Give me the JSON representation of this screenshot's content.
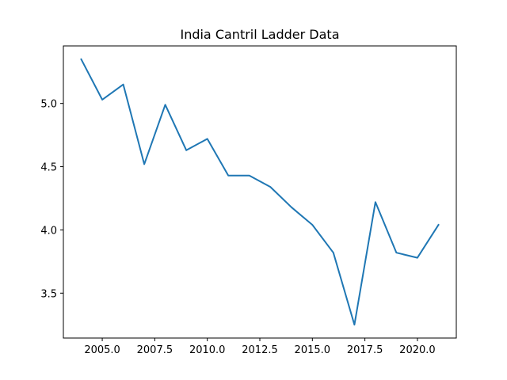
{
  "chart_data": {
    "type": "line",
    "title": "India Cantril Ladder Data",
    "xlabel": "",
    "ylabel": "",
    "xlim": [
      2003.15,
      2021.85
    ],
    "ylim": [
      3.145,
      5.455
    ],
    "xticks": [
      2005.0,
      2007.5,
      2010.0,
      2012.5,
      2015.0,
      2017.5,
      2020.0
    ],
    "xtick_labels": [
      "2005.0",
      "2007.5",
      "2010.0",
      "2012.5",
      "2015.0",
      "2017.5",
      "2020.0"
    ],
    "yticks": [
      3.5,
      4.0,
      4.5,
      5.0
    ],
    "ytick_labels": [
      "3.5",
      "4.0",
      "4.5",
      "5.0"
    ],
    "grid": false,
    "series": [
      {
        "color": "#1f77b4",
        "x": [
          2004,
          2005,
          2006,
          2007,
          2008,
          2009,
          2010,
          2011,
          2012,
          2013,
          2014,
          2015,
          2016,
          2017,
          2018,
          2019,
          2020,
          2021
        ],
        "y": [
          5.35,
          5.03,
          5.15,
          4.52,
          4.99,
          4.63,
          4.72,
          4.43,
          4.43,
          4.34,
          4.18,
          4.04,
          3.82,
          3.25,
          4.22,
          3.82,
          3.78,
          4.04
        ]
      }
    ]
  }
}
